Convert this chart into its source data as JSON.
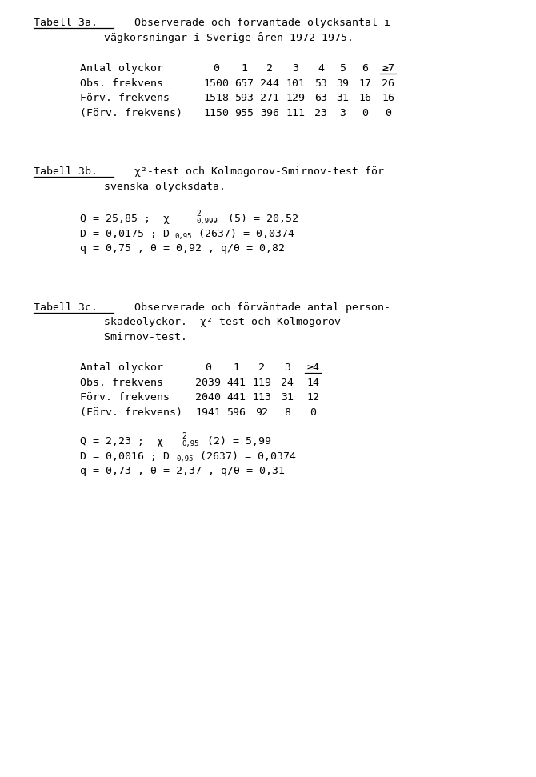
{
  "bg_color": "#ffffff",
  "title_3a_label": "Tabell 3a.",
  "title_3a_rest": "  Observerade och förväntade olycksantal i",
  "title_3a_line2": "           vägkorsningar i Sverige åren 1972-1975.",
  "title_3b_label": "Tabell 3b.",
  "title_3b_rest": "  χ²-test och Kolmogorov-Smirnov-test för",
  "title_3b_line2": "           svenska olycksdata.",
  "title_3c_label": "Tabell 3c.",
  "title_3c_rest": "  Observerade och förväntade antal person-",
  "title_3c_line2": "           skadeolyckor.  χ²-test och Kolmogorov-",
  "title_3c_line3": "           Smirnov-test.",
  "headers_3a": [
    "Antal olyckor",
    "0",
    "1",
    "2",
    "3",
    "4",
    "5",
    "6",
    "≥7"
  ],
  "rows_3a": [
    [
      "Obs. frekvens",
      "1500",
      "657",
      "244",
      "101",
      "53",
      "39",
      "17",
      "26"
    ],
    [
      "Förv. frekvens",
      "1518",
      "593",
      "271",
      "129",
      "63",
      "31",
      "16",
      "16"
    ],
    [
      "(Förv. frekvens)",
      "1150",
      "955",
      "396",
      "111",
      "23",
      "3",
      "0",
      "0"
    ]
  ],
  "headers_3c": [
    "Antal olyckor",
    "0",
    "1",
    "2",
    "3",
    "≥4"
  ],
  "rows_3c": [
    [
      "Obs. frekvens",
      "2039",
      "441",
      "119",
      "24",
      "14"
    ],
    [
      "Förv. frekvens",
      "2040",
      "441",
      "113",
      "31",
      "12"
    ],
    [
      "(Förv. frekvens)",
      "1941",
      "596",
      "92",
      "8",
      "0"
    ]
  ]
}
